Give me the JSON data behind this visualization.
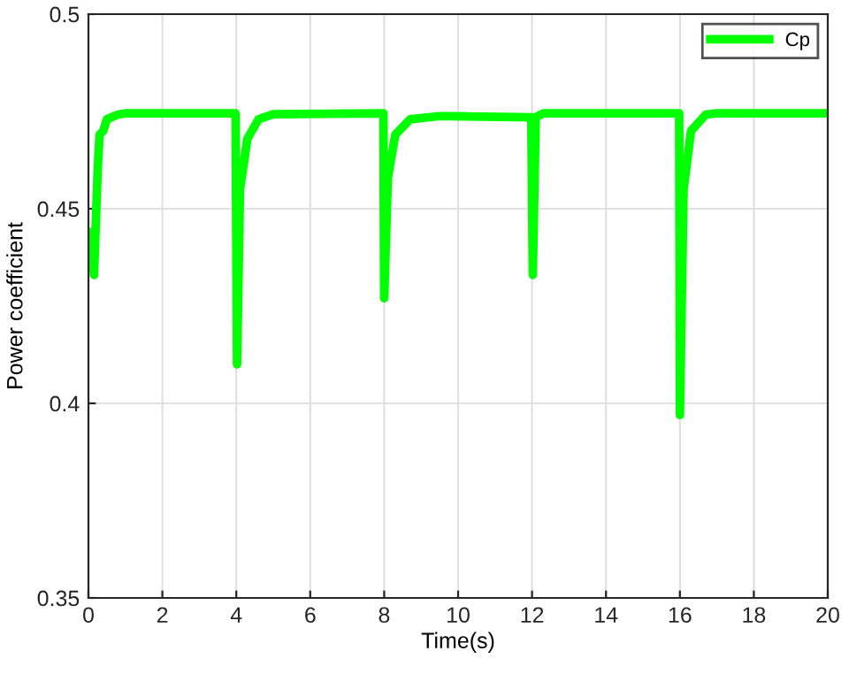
{
  "chart_data": {
    "type": "line",
    "xlabel": "Time(s)",
    "ylabel": "Power coefficient",
    "xlim": [
      0,
      20
    ],
    "xticks": [
      0,
      2,
      4,
      6,
      8,
      10,
      12,
      14,
      16,
      18,
      20
    ],
    "ylim": [
      0.35,
      0.5
    ],
    "yticks": [
      0.35,
      0.4,
      0.45,
      0.5
    ],
    "grid": true,
    "legend": "top right",
    "series": [
      {
        "name": "Cp",
        "color": "#00ff00",
        "x": [
          0,
          0.05,
          0.15,
          0.25,
          0.3,
          0.4,
          0.5,
          0.8,
          1,
          3.98,
          4.02,
          4.1,
          4.3,
          4.6,
          5,
          7.98,
          8.0,
          8.1,
          8.3,
          8.7,
          9.5,
          11.98,
          12.02,
          12.1,
          12.3,
          15.98,
          16.0,
          16.1,
          16.3,
          16.7,
          17,
          20
        ],
        "values": [
          0.44,
          0.444,
          0.433,
          0.46,
          0.469,
          0.47,
          0.473,
          0.4742,
          0.4745,
          0.4745,
          0.41,
          0.455,
          0.468,
          0.473,
          0.4743,
          0.4745,
          0.427,
          0.458,
          0.469,
          0.473,
          0.4738,
          0.4735,
          0.433,
          0.4735,
          0.4745,
          0.4745,
          0.397,
          0.455,
          0.47,
          0.4742,
          0.4745,
          0.4745
        ]
      }
    ]
  }
}
